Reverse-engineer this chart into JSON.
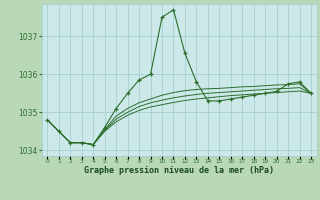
{
  "title": "Graphe pression niveau de la mer (hPa)",
  "x_labels": [
    "0",
    "1",
    "2",
    "3",
    "4",
    "5",
    "6",
    "7",
    "8",
    "9",
    "10",
    "11",
    "12",
    "13",
    "14",
    "15",
    "16",
    "17",
    "18",
    "19",
    "20",
    "21",
    "22",
    "23"
  ],
  "hours": [
    0,
    1,
    2,
    3,
    4,
    5,
    6,
    7,
    8,
    9,
    10,
    11,
    12,
    13,
    14,
    15,
    16,
    17,
    18,
    19,
    20,
    21,
    22,
    23
  ],
  "series": [
    [
      1034.8,
      1034.5,
      1034.2,
      1034.2,
      1034.15,
      1034.6,
      1035.1,
      1035.5,
      1035.85,
      1036.0,
      1037.5,
      1037.7,
      1036.55,
      1035.8,
      1035.3,
      1035.3,
      1035.35,
      1035.4,
      1035.45,
      1035.5,
      1035.55,
      1035.75,
      1035.8,
      1035.5
    ],
    [
      1034.8,
      1034.5,
      1034.2,
      1034.2,
      1034.15,
      1034.55,
      1034.9,
      1035.1,
      1035.25,
      1035.35,
      1035.45,
      1035.52,
      1035.57,
      1035.6,
      1035.62,
      1035.63,
      1035.65,
      1035.67,
      1035.68,
      1035.7,
      1035.72,
      1035.73,
      1035.75,
      1035.5
    ],
    [
      1034.8,
      1034.5,
      1034.2,
      1034.2,
      1034.15,
      1034.52,
      1034.82,
      1035.0,
      1035.15,
      1035.25,
      1035.32,
      1035.38,
      1035.43,
      1035.47,
      1035.5,
      1035.52,
      1035.54,
      1035.56,
      1035.58,
      1035.6,
      1035.62,
      1035.63,
      1035.65,
      1035.5
    ],
    [
      1034.8,
      1034.5,
      1034.2,
      1034.2,
      1034.15,
      1034.5,
      1034.75,
      1034.92,
      1035.05,
      1035.14,
      1035.2,
      1035.26,
      1035.31,
      1035.35,
      1035.38,
      1035.41,
      1035.44,
      1035.46,
      1035.48,
      1035.5,
      1035.52,
      1035.54,
      1035.56,
      1035.5
    ]
  ],
  "ylim": [
    1033.85,
    1037.85
  ],
  "yticks": [
    1034,
    1035,
    1036,
    1037
  ],
  "line_color": "#2d6e2d",
  "marker_color": "#2d6e2d",
  "bg_color": "#cce8e8",
  "grid_color": "#9ecece",
  "title_color": "#1a4a1a",
  "fig_bg": "#b8d8b8",
  "figw": 3.2,
  "figh": 2.0,
  "dpi": 100
}
